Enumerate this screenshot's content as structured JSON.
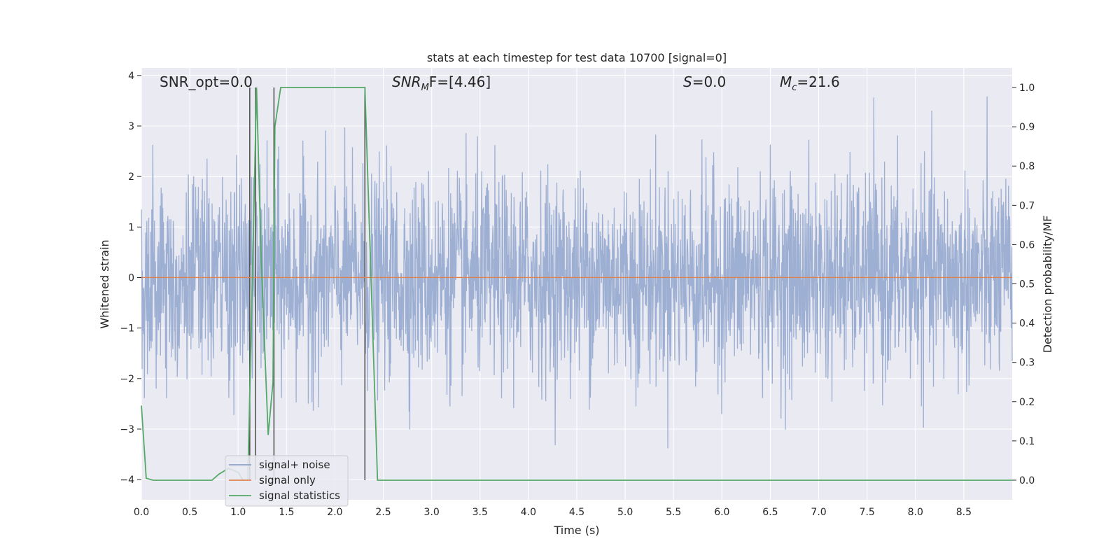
{
  "chart_data": {
    "type": "line",
    "title": "stats at each timestep for test data 10700 [signal=0]",
    "xlabel": "Time (s)",
    "ylabel_left": "Whitened strain",
    "ylabel_right": "Detection probability/MF",
    "xlim": [
      0.0,
      9.0
    ],
    "ylim_left": [
      -4.4,
      4.15
    ],
    "ylim_right": [
      -0.05,
      1.05
    ],
    "x_ticks": [
      0.0,
      0.5,
      1.0,
      1.5,
      2.0,
      2.5,
      3.0,
      3.5,
      4.0,
      4.5,
      5.0,
      5.5,
      6.0,
      6.5,
      7.0,
      7.5,
      8.0,
      8.5
    ],
    "x_tick_labels": [
      "0.0",
      "0.5",
      "1.0",
      "1.5",
      "2.0",
      "2.5",
      "3.0",
      "3.5",
      "4.0",
      "4.5",
      "5.0",
      "5.5",
      "6.0",
      "6.5",
      "7.0",
      "7.5",
      "8.0",
      "8.5"
    ],
    "y_left_ticks": [
      4,
      3,
      2,
      1,
      0,
      -1,
      -2,
      -3,
      -4
    ],
    "y_left_tick_labels": [
      "4",
      "3",
      "2",
      "1",
      "0",
      "−1",
      "−2",
      "−3",
      "−4"
    ],
    "y_right_ticks": [
      1.0,
      0.9,
      0.8,
      0.7,
      0.6,
      0.5,
      0.4,
      0.3,
      0.2,
      0.1,
      0.0
    ],
    "y_right_tick_labels": [
      "1.0",
      "0.9",
      "0.8",
      "0.7",
      "0.6",
      "0.5",
      "0.4",
      "0.3",
      "0.2",
      "0.1",
      "0.0"
    ],
    "grid": true,
    "annotations": {
      "snr_opt": "SNR_opt=0.0",
      "snr_mf_main": "SNR",
      "snr_mf_sub": "M",
      "snr_mf_rest": "F=[4.46]",
      "s_main": "S",
      "s_rest": "=0.0",
      "mc_main": "M",
      "mc_sub": "c",
      "mc_rest": "=21.6"
    },
    "vertical_markers_x": [
      1.12,
      1.18,
      1.37,
      2.31
    ],
    "series": [
      {
        "name": "signal+ noise",
        "axis": "left",
        "color": "#8fa4cc",
        "description": "whitened noise, amplitude roughly between -3.5 and 3.8"
      },
      {
        "name": "signal only",
        "axis": "left",
        "color": "#dd8452",
        "x": [
          0.0,
          9.0
        ],
        "values": [
          0.0,
          0.0
        ]
      },
      {
        "name": "signal statistics",
        "axis": "right",
        "color": "#55a868",
        "x": [
          0.0,
          0.05,
          0.12,
          0.3,
          0.5,
          0.73,
          0.8,
          0.9,
          1.0,
          1.05,
          1.1,
          1.15,
          1.19,
          1.24,
          1.31,
          1.36,
          1.38,
          1.44,
          1.6,
          2.0,
          2.31,
          2.44,
          3.0,
          5.0,
          7.0,
          9.0
        ],
        "values": [
          0.19,
          0.005,
          0.0,
          0.0,
          0.0,
          0.0,
          0.015,
          0.03,
          0.02,
          0.0,
          0.0,
          0.55,
          1.0,
          0.55,
          0.115,
          0.25,
          0.9,
          1.0,
          1.0,
          1.0,
          1.0,
          0.0,
          0.0,
          0.0,
          0.0,
          0.0
        ]
      }
    ],
    "legend": {
      "position": "lower-left",
      "entries": [
        {
          "label": "signal+ noise",
          "color": "#8fa4cc"
        },
        {
          "label": "signal only",
          "color": "#dd8452"
        },
        {
          "label": "signal statistics",
          "color": "#55a868"
        }
      ]
    }
  }
}
